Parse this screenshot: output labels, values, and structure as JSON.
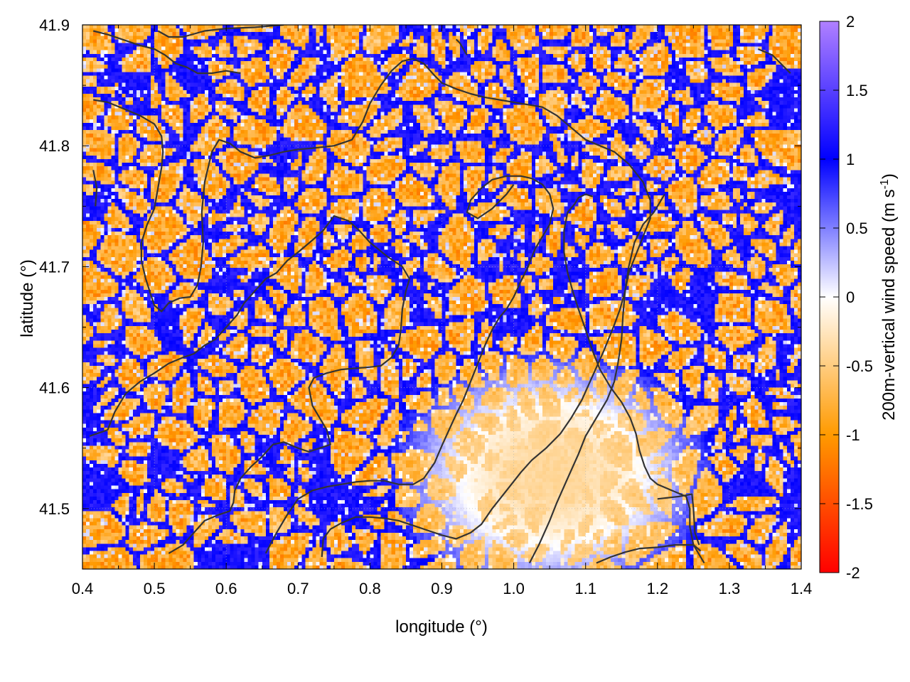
{
  "chart_data": {
    "type": "heatmap",
    "xlabel": "longitude (°)",
    "ylabel": "latitude (°)",
    "colorbar_label": "200m-vertical wind speed (m s",
    "colorbar_label_sup": "-1",
    "colorbar_label_end": ")",
    "xlim": [
      0.4,
      1.4
    ],
    "ylim": [
      41.45,
      41.9
    ],
    "x_ticks": [
      0.4,
      0.5,
      0.6,
      0.7,
      0.8,
      0.9,
      1.0,
      1.1,
      1.2,
      1.3,
      1.4
    ],
    "x_tick_labels": [
      "0.4",
      "0.5",
      "0.6",
      "0.7",
      "0.8",
      "0.9",
      "1.0",
      "1.1",
      "1.2",
      "1.3",
      "1.4"
    ],
    "y_ticks": [
      41.5,
      41.6,
      41.7,
      41.8,
      41.9
    ],
    "y_tick_labels": [
      "41.5",
      "41.6",
      "41.7",
      "41.8",
      "41.9"
    ],
    "color_range": [
      -2,
      2
    ],
    "cb_ticks": [
      2,
      1.5,
      1,
      0.5,
      0,
      -0.5,
      -1,
      -1.5,
      -2
    ],
    "cb_tick_labels": [
      "2",
      "1.5",
      "1",
      "0.5",
      "0",
      "-0.5",
      "-1",
      "-1.5",
      "-2"
    ],
    "colormap": [
      {
        "v": -2.0,
        "color": "#ff0000"
      },
      {
        "v": -1.0,
        "color": "#ff9a00"
      },
      {
        "v": 0.0,
        "color": "#ffffff"
      },
      {
        "v": 1.0,
        "color": "#0000ff"
      },
      {
        "v": 2.0,
        "color": "#b080ff"
      }
    ],
    "grid": true,
    "legend": "none",
    "contour_color": "#333333",
    "contour_lines": [
      [
        [
          0.415,
          41.838
        ],
        [
          0.435,
          41.836
        ],
        [
          0.46,
          41.83
        ],
        [
          0.48,
          41.825
        ],
        [
          0.5,
          41.818
        ],
        [
          0.51,
          41.808
        ],
        [
          0.512,
          41.795
        ],
        [
          0.51,
          41.782
        ],
        [
          0.505,
          41.765
        ],
        [
          0.5,
          41.748
        ],
        [
          0.49,
          41.735
        ],
        [
          0.482,
          41.72
        ],
        [
          0.482,
          41.705
        ],
        [
          0.488,
          41.69
        ],
        [
          0.495,
          41.677
        ],
        [
          0.5,
          41.668
        ],
        [
          0.51,
          41.663
        ],
        [
          0.52,
          41.67
        ],
        [
          0.535,
          41.674
        ],
        [
          0.55,
          41.675
        ],
        [
          0.56,
          41.685
        ],
        [
          0.565,
          41.7
        ],
        [
          0.568,
          41.72
        ],
        [
          0.566,
          41.745
        ],
        [
          0.57,
          41.77
        ],
        [
          0.58,
          41.795
        ],
        [
          0.59,
          41.805
        ],
        [
          0.605,
          41.802
        ],
        [
          0.62,
          41.795
        ],
        [
          0.64,
          41.79
        ],
        [
          0.66,
          41.792
        ],
        [
          0.68,
          41.795
        ],
        [
          0.7,
          41.797
        ],
        [
          0.72,
          41.798
        ],
        [
          0.75,
          41.8
        ],
        [
          0.775,
          41.805
        ],
        [
          0.79,
          41.82
        ],
        [
          0.8,
          41.835
        ],
        [
          0.815,
          41.85
        ],
        [
          0.83,
          41.862
        ],
        [
          0.845,
          41.87
        ],
        [
          0.86,
          41.872
        ],
        [
          0.875,
          41.868
        ],
        [
          0.89,
          41.858
        ],
        [
          0.9,
          41.852
        ],
        [
          0.92,
          41.847
        ],
        [
          0.94,
          41.843
        ],
        [
          0.96,
          41.84
        ],
        [
          0.98,
          41.838
        ],
        [
          1.0,
          41.836
        ],
        [
          1.02,
          41.834
        ],
        [
          1.04,
          41.832
        ],
        [
          1.06,
          41.825
        ],
        [
          1.08,
          41.815
        ],
        [
          1.1,
          41.805
        ],
        [
          1.12,
          41.8
        ],
        [
          1.14,
          41.795
        ],
        [
          1.16,
          41.785
        ],
        [
          1.18,
          41.77
        ],
        [
          1.19,
          41.755
        ],
        [
          1.19,
          41.74
        ],
        [
          1.18,
          41.725
        ],
        [
          1.17,
          41.71
        ],
        [
          1.16,
          41.695
        ],
        [
          1.155,
          41.68
        ],
        [
          1.148,
          41.665
        ],
        [
          1.14,
          41.652
        ],
        [
          1.125,
          41.63
        ],
        [
          1.11,
          41.61
        ],
        [
          1.095,
          41.59
        ],
        [
          1.08,
          41.575
        ],
        [
          1.065,
          41.562
        ],
        [
          1.045,
          41.55
        ],
        [
          1.025,
          41.54
        ],
        [
          1.01,
          41.53
        ],
        [
          0.99,
          41.515
        ],
        [
          0.97,
          41.5
        ],
        [
          0.955,
          41.487
        ],
        [
          0.94,
          41.48
        ],
        [
          0.92,
          41.475
        ],
        [
          0.9,
          41.478
        ],
        [
          0.88,
          41.482
        ],
        [
          0.86,
          41.486
        ],
        [
          0.84,
          41.49
        ],
        [
          0.82,
          41.492
        ],
        [
          0.8,
          41.493
        ],
        [
          0.78,
          41.493
        ],
        [
          0.76,
          41.488
        ],
        [
          0.745,
          41.483
        ],
        [
          0.735,
          41.475
        ],
        [
          0.733,
          41.46
        ]
      ],
      [
        [
          0.52,
          41.463
        ],
        [
          0.54,
          41.47
        ],
        [
          0.555,
          41.48
        ],
        [
          0.57,
          41.49
        ],
        [
          0.59,
          41.495
        ],
        [
          0.605,
          41.498
        ],
        [
          0.61,
          41.505
        ],
        [
          0.612,
          41.515
        ],
        [
          0.62,
          41.525
        ],
        [
          0.635,
          41.535
        ],
        [
          0.65,
          41.543
        ],
        [
          0.665,
          41.553
        ],
        [
          0.68,
          41.555
        ],
        [
          0.7,
          41.55
        ],
        [
          0.715,
          41.547
        ],
        [
          0.73,
          41.55
        ],
        [
          0.745,
          41.553
        ],
        [
          0.74,
          41.565
        ],
        [
          0.73,
          41.575
        ],
        [
          0.72,
          41.585
        ],
        [
          0.715,
          41.6
        ],
        [
          0.722,
          41.608
        ],
        [
          0.74,
          41.612
        ],
        [
          0.76,
          41.615
        ],
        [
          0.78,
          41.616
        ],
        [
          0.8,
          41.617
        ],
        [
          0.815,
          41.618
        ],
        [
          0.83,
          41.625
        ],
        [
          0.84,
          41.635
        ],
        [
          0.843,
          41.648
        ],
        [
          0.845,
          41.665
        ],
        [
          0.85,
          41.68
        ],
        [
          0.855,
          41.69
        ],
        [
          0.845,
          41.7
        ],
        [
          0.825,
          41.708
        ],
        [
          0.8,
          41.72
        ],
        [
          0.785,
          41.73
        ],
        [
          0.77,
          41.738
        ],
        [
          0.75,
          41.742
        ],
        [
          0.735,
          41.73
        ],
        [
          0.72,
          41.722
        ],
        [
          0.7,
          41.712
        ],
        [
          0.685,
          41.705
        ],
        [
          0.67,
          41.695
        ],
        [
          0.655,
          41.69
        ],
        [
          0.64,
          41.68
        ],
        [
          0.625,
          41.67
        ],
        [
          0.615,
          41.66
        ],
        [
          0.6,
          41.65
        ],
        [
          0.585,
          41.64
        ],
        [
          0.57,
          41.635
        ],
        [
          0.555,
          41.628
        ],
        [
          0.54,
          41.625
        ],
        [
          0.52,
          41.62
        ],
        [
          0.5,
          41.612
        ],
        [
          0.48,
          41.605
        ],
        [
          0.46,
          41.595
        ],
        [
          0.445,
          41.58
        ],
        [
          0.435,
          41.565
        ],
        [
          0.41,
          41.56
        ]
      ],
      [
        [
          0.655,
          41.463
        ],
        [
          0.67,
          41.48
        ],
        [
          0.685,
          41.495
        ],
        [
          0.7,
          41.508
        ],
        [
          0.72,
          41.515
        ],
        [
          0.74,
          41.518
        ],
        [
          0.76,
          41.52
        ],
        [
          0.78,
          41.522
        ],
        [
          0.8,
          41.523
        ],
        [
          0.82,
          41.523
        ],
        [
          0.84,
          41.52
        ],
        [
          0.86,
          41.52
        ],
        [
          0.875,
          41.525
        ],
        [
          0.89,
          41.538
        ],
        [
          0.9,
          41.552
        ],
        [
          0.91,
          41.565
        ],
        [
          0.92,
          41.578
        ],
        [
          0.93,
          41.59
        ],
        [
          0.94,
          41.605
        ],
        [
          0.95,
          41.62
        ],
        [
          0.96,
          41.635
        ],
        [
          0.97,
          41.648
        ],
        [
          0.98,
          41.658
        ],
        [
          0.99,
          41.665
        ],
        [
          1.0,
          41.675
        ],
        [
          1.01,
          41.688
        ],
        [
          1.02,
          41.7
        ],
        [
          1.03,
          41.715
        ],
        [
          1.04,
          41.725
        ],
        [
          1.05,
          41.735
        ],
        [
          1.055,
          41.748
        ],
        [
          1.05,
          41.76
        ],
        [
          1.04,
          41.768
        ],
        [
          1.025,
          41.773
        ],
        [
          1.01,
          41.775
        ],
        [
          0.99,
          41.775
        ],
        [
          0.97,
          41.772
        ],
        [
          0.955,
          41.765
        ],
        [
          0.94,
          41.755
        ],
        [
          0.935,
          41.745
        ],
        [
          0.95,
          41.74
        ],
        [
          0.97,
          41.748
        ],
        [
          0.99,
          41.76
        ],
        [
          1.0,
          41.768
        ]
      ],
      [
        [
          1.022,
          41.455
        ],
        [
          1.035,
          41.47
        ],
        [
          1.05,
          41.49
        ],
        [
          1.06,
          41.505
        ],
        [
          1.075,
          41.525
        ],
        [
          1.09,
          41.545
        ],
        [
          1.1,
          41.56
        ],
        [
          1.115,
          41.575
        ],
        [
          1.13,
          41.59
        ],
        [
          1.14,
          41.605
        ],
        [
          1.145,
          41.62
        ],
        [
          1.15,
          41.64
        ],
        [
          1.152,
          41.66
        ],
        [
          1.155,
          41.68
        ],
        [
          1.16,
          41.7
        ],
        [
          1.168,
          41.72
        ],
        [
          1.18,
          41.735
        ],
        [
          1.195,
          41.745
        ],
        [
          1.205,
          41.755
        ],
        [
          1.21,
          41.76
        ]
      ],
      [
        [
          1.265,
          41.455
        ],
        [
          1.25,
          41.47
        ],
        [
          1.245,
          41.485
        ],
        [
          1.245,
          41.5
        ],
        [
          1.24,
          41.51
        ],
        [
          1.22,
          41.515
        ],
        [
          1.2,
          41.52
        ],
        [
          1.19,
          41.525
        ],
        [
          1.182,
          41.535
        ],
        [
          1.175,
          41.548
        ],
        [
          1.17,
          41.562
        ],
        [
          1.162,
          41.575
        ],
        [
          1.15,
          41.588
        ],
        [
          1.135,
          41.6
        ],
        [
          1.12,
          41.615
        ],
        [
          1.11,
          41.63
        ],
        [
          1.1,
          41.648
        ],
        [
          1.09,
          41.665
        ],
        [
          1.082,
          41.68
        ],
        [
          1.075,
          41.695
        ],
        [
          1.07,
          41.712
        ],
        [
          1.07,
          41.73
        ],
        [
          1.075,
          41.745
        ],
        [
          1.085,
          41.752
        ],
        [
          1.09,
          41.757
        ],
        [
          1.1,
          41.76
        ],
        [
          1.11,
          41.758
        ]
      ],
      [
        [
          1.115,
          41.455
        ],
        [
          1.135,
          41.46
        ],
        [
          1.155,
          41.464
        ],
        [
          1.175,
          41.467
        ],
        [
          1.2,
          41.468
        ],
        [
          1.225,
          41.47
        ],
        [
          1.25,
          41.47
        ],
        [
          1.26,
          41.465
        ]
      ],
      [
        [
          1.2,
          41.508
        ],
        [
          1.23,
          41.51
        ],
        [
          1.248,
          41.512
        ],
        [
          1.25,
          41.5
        ],
        [
          1.252,
          41.48
        ],
        [
          1.258,
          41.47
        ]
      ],
      [
        [
          0.935,
          41.875
        ],
        [
          0.93,
          41.88
        ],
        [
          0.925,
          41.885
        ],
        [
          0.92,
          41.888
        ]
      ],
      [
        [
          0.505,
          41.895
        ],
        [
          0.52,
          41.89
        ],
        [
          0.54,
          41.89
        ],
        [
          0.57,
          41.895
        ],
        [
          0.6,
          41.897
        ],
        [
          0.64,
          41.898
        ],
        [
          0.68,
          41.9
        ]
      ],
      [
        [
          0.415,
          41.895
        ],
        [
          0.435,
          41.892
        ],
        [
          0.46,
          41.887
        ],
        [
          0.48,
          41.883
        ],
        [
          0.5,
          41.88
        ],
        [
          0.515,
          41.875
        ],
        [
          0.53,
          41.868
        ],
        [
          0.545,
          41.865
        ],
        [
          0.56,
          41.86
        ],
        [
          0.58,
          41.86
        ],
        [
          0.6,
          41.862
        ],
        [
          0.62,
          41.86
        ]
      ],
      [
        [
          1.34,
          41.88
        ],
        [
          1.36,
          41.875
        ],
        [
          1.385,
          41.86
        ]
      ],
      [
        [
          0.415,
          41.78
        ],
        [
          0.42,
          41.765
        ],
        [
          0.418,
          41.75
        ]
      ]
    ]
  }
}
